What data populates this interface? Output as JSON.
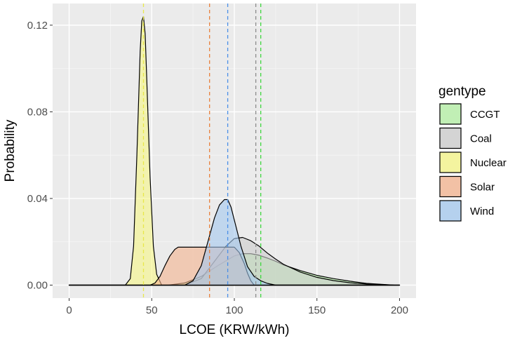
{
  "chart_data": {
    "type": "area",
    "title": "",
    "xlabel": "LCOE (KRW/kWh)",
    "ylabel": "Probability",
    "xlim": [
      -10,
      210
    ],
    "ylim": [
      -0.006,
      0.13
    ],
    "x_ticks": [
      0,
      50,
      100,
      150,
      200
    ],
    "x_tick_labels": [
      "0",
      "50",
      "100",
      "150",
      "200"
    ],
    "y_ticks": [
      0.0,
      0.04,
      0.08,
      0.12
    ],
    "y_tick_labels": [
      "0.00",
      "0.04",
      "0.08",
      "0.12"
    ],
    "grid": true,
    "legend": {
      "title": "gentype",
      "position": "right",
      "entries": [
        "CCGT",
        "Coal",
        "Nuclear",
        "Solar",
        "Wind"
      ]
    },
    "mean_lines": [
      {
        "series": "CCGT",
        "x": 116,
        "color": "#3ed63e"
      },
      {
        "series": "Coal",
        "x": 113,
        "color": "#8c8c8c"
      },
      {
        "series": "Nuclear",
        "x": 45,
        "color": "#e8e84a"
      },
      {
        "series": "Solar",
        "x": 85,
        "color": "#e8803c"
      },
      {
        "series": "Wind",
        "x": 96,
        "color": "#4a8fe8"
      }
    ],
    "series": [
      {
        "name": "CCGT",
        "color": "#b3f0a3",
        "x": [
          0,
          60,
          70,
          80,
          90,
          100,
          105,
          110,
          115,
          120,
          125,
          130,
          140,
          150,
          160,
          170,
          180,
          190,
          197,
          200
        ],
        "values": [
          0,
          0,
          0.001,
          0.004,
          0.009,
          0.0135,
          0.0145,
          0.0145,
          0.0138,
          0.0125,
          0.011,
          0.0093,
          0.0067,
          0.0045,
          0.003,
          0.0018,
          0.0008,
          0.0003,
          0,
          0
        ]
      },
      {
        "name": "Coal",
        "color": "#cccccc",
        "x": [
          0,
          70,
          80,
          90,
          95,
          100,
          105,
          110,
          115,
          120,
          125,
          130,
          140,
          150,
          160,
          170,
          180,
          190,
          197,
          200
        ],
        "values": [
          0,
          0,
          0.003,
          0.013,
          0.018,
          0.0215,
          0.022,
          0.0205,
          0.018,
          0.0148,
          0.012,
          0.0095,
          0.006,
          0.0036,
          0.0021,
          0.0011,
          0.0005,
          0.0002,
          0,
          0
        ]
      },
      {
        "name": "Nuclear",
        "color": "#f7f785",
        "x": [
          0,
          34,
          37,
          39,
          41,
          43,
          44,
          45,
          46,
          47,
          49,
          51,
          53,
          56,
          200
        ],
        "values": [
          0,
          0,
          0.003,
          0.018,
          0.06,
          0.108,
          0.122,
          0.124,
          0.116,
          0.095,
          0.05,
          0.018,
          0.005,
          0,
          0
        ]
      },
      {
        "name": "Solar",
        "color": "#f4b38e",
        "x": [
          0,
          49,
          52,
          55,
          58,
          61,
          64,
          66,
          70,
          80,
          90,
          100,
          103,
          106,
          108,
          110,
          112,
          200
        ],
        "values": [
          0,
          0,
          0.001,
          0.004,
          0.009,
          0.0135,
          0.0165,
          0.0175,
          0.0175,
          0.0175,
          0.0175,
          0.0175,
          0.015,
          0.01,
          0.0055,
          0.002,
          0,
          0
        ]
      },
      {
        "name": "Wind",
        "color": "#a3c8ef",
        "x": [
          0,
          70,
          75,
          80,
          84,
          88,
          91,
          94,
          96,
          98,
          101,
          104,
          108,
          112,
          116,
          120,
          125,
          200
        ],
        "values": [
          0,
          0,
          0.002,
          0.009,
          0.02,
          0.031,
          0.037,
          0.0395,
          0.0395,
          0.036,
          0.027,
          0.018,
          0.0085,
          0.004,
          0.002,
          0.0008,
          0,
          0
        ]
      }
    ]
  }
}
